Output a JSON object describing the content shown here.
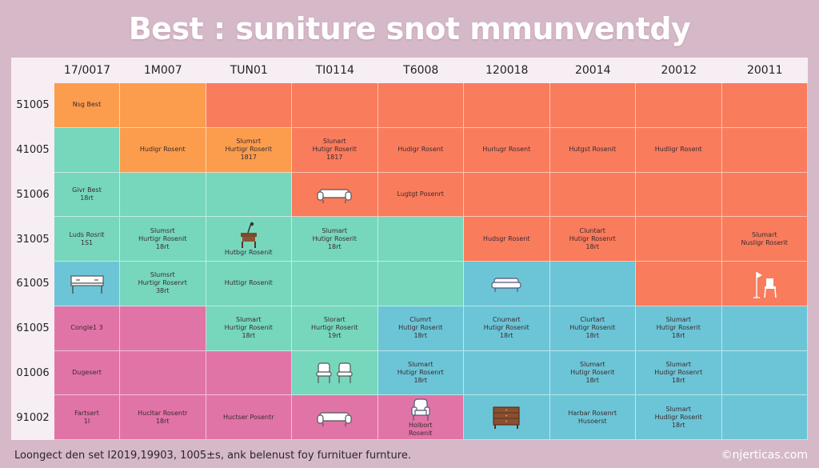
{
  "title": "Best : suniture snot mmunventdy",
  "footer": "Loongect den set I2019,19903, 1005±s, ank belenust foy furnituer furnture.",
  "credit": "©njerticas.com",
  "colors": {
    "orange": "#fb9d4d",
    "coral": "#f97c5c",
    "mint": "#76d7bd",
    "pink": "#e174a6",
    "blue": "#6cc5d6",
    "bg": "#d6b9c8",
    "panel": "#f3e6ee"
  },
  "chart_data": {
    "type": "heatmap",
    "title": "Best : suniture snot mmunventdy",
    "columns": [
      "17/0017",
      "1M007",
      "TUN01",
      "TI0114",
      "T6008",
      "120018",
      "20014",
      "20012",
      "20011"
    ],
    "rows": [
      "51005",
      "41005",
      "51006",
      "31005",
      "61005",
      "61005",
      "01006",
      "91002"
    ],
    "cells": [
      [
        {
          "color": "orange",
          "lines": [
            "Nsg Best"
          ]
        },
        {
          "color": "orange",
          "lines": []
        },
        {
          "color": "coral",
          "lines": []
        },
        {
          "color": "coral",
          "lines": []
        },
        {
          "color": "coral",
          "lines": []
        },
        {
          "color": "coral",
          "lines": []
        },
        {
          "color": "coral",
          "lines": []
        },
        {
          "color": "coral",
          "lines": []
        },
        {
          "color": "coral",
          "lines": []
        }
      ],
      [
        {
          "color": "mint",
          "lines": []
        },
        {
          "color": "orange",
          "lines": [
            "Hudigr Rosent"
          ]
        },
        {
          "color": "orange",
          "lines": [
            "Slumsrt",
            "Hurtigr Roserit",
            "1817"
          ]
        },
        {
          "color": "coral",
          "lines": [
            "Slunart",
            "Hutigr Roserit",
            "1817"
          ]
        },
        {
          "color": "coral",
          "lines": [
            "Hudigr Rosent"
          ]
        },
        {
          "color": "coral",
          "lines": [
            "Hurlugr Rosent"
          ]
        },
        {
          "color": "coral",
          "lines": [
            "Hutgst Rosenit"
          ]
        },
        {
          "color": "coral",
          "lines": [
            "Hudligr Rosent"
          ]
        },
        {
          "color": "coral",
          "lines": []
        }
      ],
      [
        {
          "color": "mint",
          "lines": [
            "Givr Best",
            "18rt"
          ]
        },
        {
          "color": "mint",
          "lines": []
        },
        {
          "color": "mint",
          "lines": []
        },
        {
          "color": "coral",
          "lines": [],
          "icon": "sofa-icon"
        },
        {
          "color": "coral",
          "lines": [
            "Lugtgt Posenrt"
          ]
        },
        {
          "color": "coral",
          "lines": []
        },
        {
          "color": "coral",
          "lines": []
        },
        {
          "color": "coral",
          "lines": []
        },
        {
          "color": "coral",
          "lines": []
        }
      ],
      [
        {
          "color": "mint",
          "lines": [
            "Luds Rosrit",
            "1S1"
          ]
        },
        {
          "color": "mint",
          "lines": [
            "Slumsrt",
            "Hurtigr Rosenit",
            "18rt"
          ]
        },
        {
          "color": "mint",
          "lines": [
            "Hutbgr Rosenit"
          ],
          "icon": "side-table-icon"
        },
        {
          "color": "mint",
          "lines": [
            "Slumart",
            "Hutigr Roserit",
            "18rt"
          ]
        },
        {
          "color": "mint",
          "lines": []
        },
        {
          "color": "coral",
          "lines": [
            "Hudsgr Rosent"
          ]
        },
        {
          "color": "coral",
          "lines": [
            "Cluntart",
            "Hutigr Rosenrt",
            "18rt"
          ]
        },
        {
          "color": "coral",
          "lines": []
        },
        {
          "color": "coral",
          "lines": [
            "Slumart",
            "Nusligr Roserit"
          ]
        }
      ],
      [
        {
          "color": "blue",
          "lines": [],
          "icon": "console-table-icon"
        },
        {
          "color": "mint",
          "lines": [
            "Slumsrt",
            "Hurtigr Rosenrt",
            "38rt"
          ]
        },
        {
          "color": "mint",
          "lines": [
            "Huttigr Rosenit"
          ]
        },
        {
          "color": "mint",
          "lines": []
        },
        {
          "color": "mint",
          "lines": []
        },
        {
          "color": "blue",
          "lines": [],
          "icon": "couch-icon"
        },
        {
          "color": "blue",
          "lines": []
        },
        {
          "color": "coral",
          "lines": []
        },
        {
          "color": "coral",
          "lines": [],
          "icon": "chair-lamp-icon"
        }
      ],
      [
        {
          "color": "pink",
          "lines": [
            "Congle1 3"
          ]
        },
        {
          "color": "pink",
          "lines": []
        },
        {
          "color": "mint",
          "lines": [
            "Slumart",
            "Hurtigr Rosenit",
            "18rt"
          ]
        },
        {
          "color": "mint",
          "lines": [
            "Slorart",
            "Hurtigr Roserit",
            "19rt"
          ]
        },
        {
          "color": "blue",
          "lines": [
            "Clumrt",
            "Hutigr Roserit",
            "18rt"
          ]
        },
        {
          "color": "blue",
          "lines": [
            "Cnumart",
            "Hutigr Rosenit",
            "18rt"
          ]
        },
        {
          "color": "blue",
          "lines": [
            "Clurtart",
            "Hutigr Rosenit",
            "18rt"
          ]
        },
        {
          "color": "blue",
          "lines": [
            "Slumart",
            "Hutigr Roserit",
            "18rt"
          ]
        },
        {
          "color": "blue",
          "lines": []
        }
      ],
      [
        {
          "color": "pink",
          "lines": [
            "Dugesert"
          ]
        },
        {
          "color": "pink",
          "lines": []
        },
        {
          "color": "pink",
          "lines": []
        },
        {
          "color": "mint",
          "lines": [],
          "icon": "two-chairs-icon"
        },
        {
          "color": "blue",
          "lines": [
            "Slumart",
            "Hutigr Rosenrt",
            "18rt"
          ]
        },
        {
          "color": "blue",
          "lines": []
        },
        {
          "color": "blue",
          "lines": [
            "Slumart",
            "Hutigr Roserit",
            "18rt"
          ]
        },
        {
          "color": "blue",
          "lines": [
            "Slumart",
            "Hudigr Rosenrt",
            "18rt"
          ]
        },
        {
          "color": "blue",
          "lines": []
        }
      ],
      [
        {
          "color": "pink",
          "lines": [
            "Fartsert",
            "1I"
          ]
        },
        {
          "color": "pink",
          "lines": [
            "Hucltar Rosentr",
            "18rt"
          ]
        },
        {
          "color": "pink",
          "lines": [
            "Huctser Posentr"
          ]
        },
        {
          "color": "pink",
          "lines": [],
          "icon": "sofa-icon"
        },
        {
          "color": "pink",
          "lines": [
            "Holbort",
            "Rosenit"
          ],
          "icon": "armchair-icon"
        },
        {
          "color": "blue",
          "lines": [],
          "icon": "dresser-icon"
        },
        {
          "color": "blue",
          "lines": [
            "Harbar Rosenrt",
            "Husoerst"
          ]
        },
        {
          "color": "blue",
          "lines": [
            "Slumart",
            "Hudligr Roserit",
            "18rt"
          ]
        },
        {
          "color": "blue",
          "lines": []
        }
      ]
    ]
  }
}
